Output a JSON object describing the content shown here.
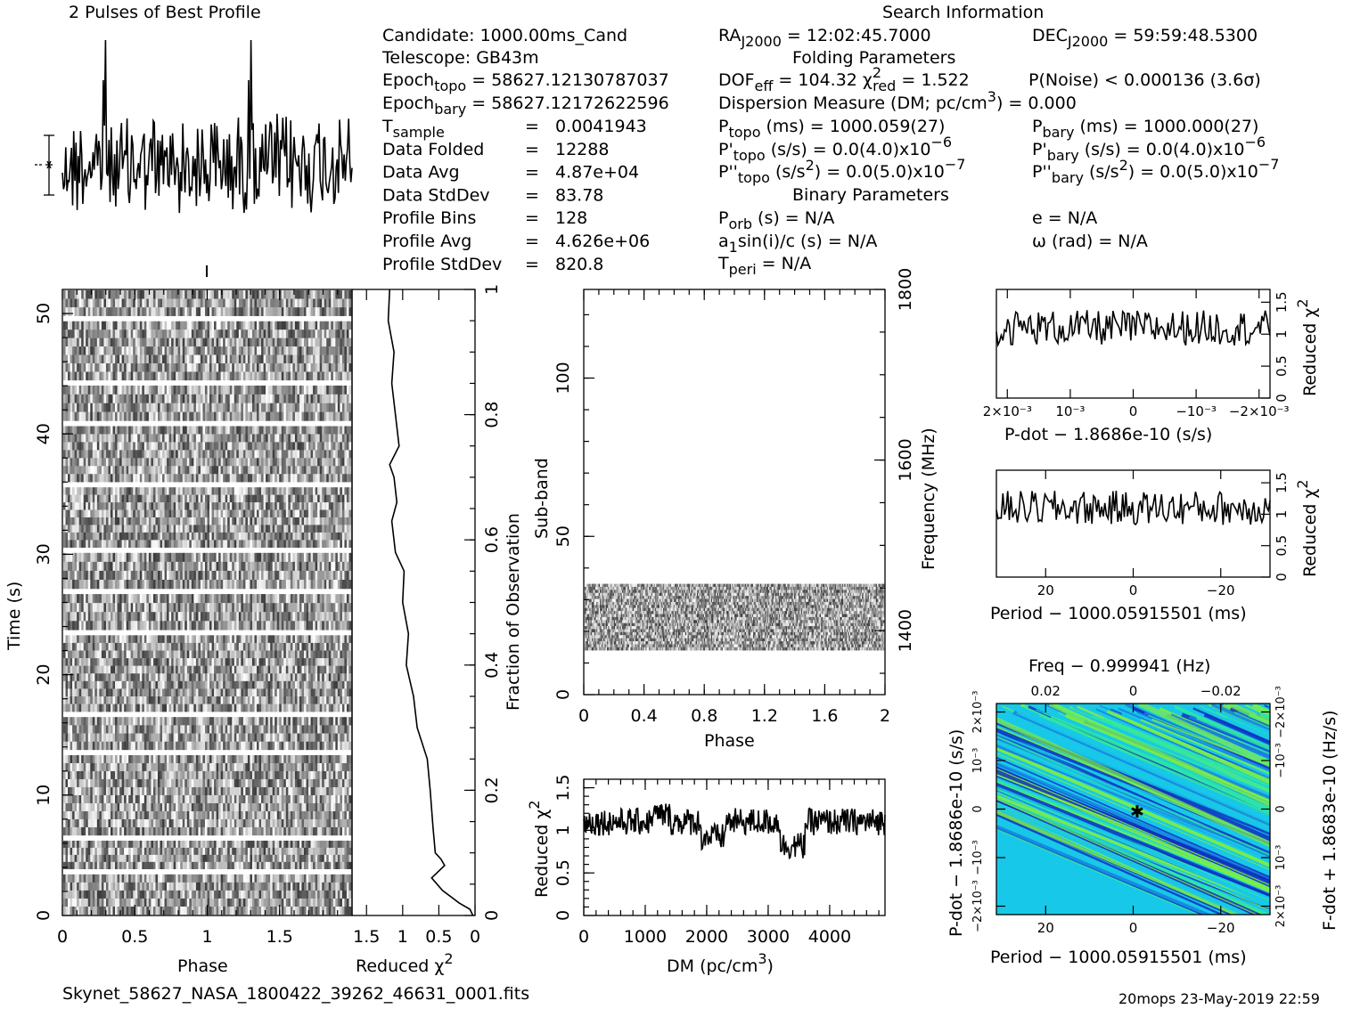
{
  "title_profile": "2 Pulses of Best Profile",
  "search_title": "Search Information",
  "folding_title": "Folding Parameters",
  "binary_title": "Binary Parameters",
  "candidate": {
    "line1": "Candidate:  1000.00ms_Cand",
    "line2": "Telescope:  GB43m",
    "epoch_topo": "Epoch",
    "epoch_topo_sub": "topo",
    "epoch_topo_val": " = 58627.12130787037",
    "epoch_bary": "Epoch",
    "epoch_bary_sub": "bary",
    "epoch_bary_val": " = 58627.12172622596",
    "rows": [
      {
        "label": "T",
        "sub": "sample",
        "eq": "=",
        "value": "0.0041943"
      },
      {
        "label": "Data Folded",
        "sub": "",
        "eq": "=",
        "value": "12288"
      },
      {
        "label": "Data Avg",
        "sub": "",
        "eq": "=",
        "value": "4.87e+04"
      },
      {
        "label": "Data StdDev",
        "sub": "",
        "eq": "=",
        "value": "83.78"
      },
      {
        "label": "Profile Bins",
        "sub": "",
        "eq": "=",
        "value": "128"
      },
      {
        "label": "Profile Avg",
        "sub": "",
        "eq": "=",
        "value": "4.626e+06"
      },
      {
        "label": "Profile StdDev",
        "sub": "",
        "eq": "=",
        "value": "820.8"
      }
    ]
  },
  "search": {
    "ra": "RA",
    "ra_sub": "J2000",
    "ra_val": " = 12:02:45.7000",
    "dec": "DEC",
    "dec_sub": "J2000",
    "dec_val": " = 59:59:48.5300",
    "dof": "DOF",
    "dof_sub": "eff",
    "dof_val": " = 104.32  ",
    "chi": "χ",
    "chi_sup": "2",
    "chi_sub": "red",
    "chi_val": " = 1.522",
    "pnoise": "P(Noise) < 0.000136  (3.6σ)",
    "dm_line": "Dispersion Measure (DM; pc/cm",
    "dm_sup": "3",
    "dm_end": ") = 0.000",
    "ptopo": "P",
    "ptopo_sub": "topo",
    "ptopo_val": " (ms) =  1000.059(27)",
    "pbary": "P",
    "pbary_sub": "bary",
    "pbary_val": " (ms) =  1000.000(27)",
    "pdtopo": "P'",
    "pdtopo_sub": "topo",
    "pdtopo_val": " (s/s) = 0.0(4.0)x10",
    "pdtopo_exp": "−6",
    "pdbary": "P'",
    "pdbary_sub": "bary",
    "pdbary_val": " (s/s) = 0.0(4.0)x10",
    "pdbary_exp": "−6",
    "pddtopo": "P''",
    "pddtopo_sub": "topo",
    "pddtopo_val": " (s/s",
    "pddtopo_sup": "2",
    "pddtopo_val2": ") = 0.0(5.0)x10",
    "pddtopo_exp": "−7",
    "pddbary": "P''",
    "pddbary_sub": "bary",
    "pddbary_val": " (s/s",
    "pddbary_sup": "2",
    "pddbary_val2": ") = 0.0(5.0)x10",
    "pddbary_exp": "−7",
    "porb": "P",
    "porb_sub": "orb",
    "porb_val": " (s) = N/A",
    "ecc": "e = N/A",
    "asini": "a",
    "asini_sub": "1",
    "asini_val": "sin(i)/c (s) = N/A",
    "omega": "ω (rad) = N/A",
    "tperi": "T",
    "tperi_sub": "peri",
    "tperi_val": " = N/A"
  },
  "axes": {
    "time_label": "Time (s)",
    "phase_label": "Phase",
    "redchi_label": "Reduced χ",
    "chi_sup": "2",
    "fraction_label": "Fraction of Observation",
    "subband_label": "Sub-band",
    "frequency_label": "Frequency (MHz)",
    "dm_label": "DM (pc/cm",
    "dm_sup": "3",
    "dm_close": ")",
    "pdot_label": "P-dot − 1.8686e-10 (s/s)",
    "period_label": "Period − 1000.05915501 (ms)",
    "freq_label": "Freq − 0.999941 (Hz)",
    "fdot_label": "F-dot + 1.8683e-10 (Hz/s)"
  },
  "footer": {
    "filename": "Skynet_58627_NASA_1800422_39262_46631_0001.fits",
    "stamp": "20mops 23-May-2019 22:59"
  },
  "chart_data": [
    {
      "type": "line",
      "name": "profile",
      "title": "2 Pulses of Best Profile",
      "x": [
        0,
        2
      ],
      "note_values": "phase 0-2"
    },
    {
      "type": "heatmap",
      "name": "time-vs-phase",
      "xlabel": "Phase",
      "ylabel": "Time (s)",
      "xlim": [
        0,
        2
      ],
      "ylim": [
        0,
        52
      ],
      "xticks": [
        "0",
        "0.5",
        "1",
        "1.5"
      ],
      "yticks": [
        "0",
        "10",
        "20",
        "30",
        "40",
        "50"
      ]
    },
    {
      "type": "line",
      "name": "time-reduced-chi2",
      "xlabel": "Reduced χ2",
      "xticks": [
        "1.5",
        "1",
        "0.5",
        "0"
      ],
      "yticks_right": [
        "0",
        "0.2",
        "0.4",
        "0.6",
        "0.8",
        "1"
      ],
      "ylabel_right": "Fraction of Observation",
      "points": [
        [
          0.03,
          0.0
        ],
        [
          0.07,
          0.01
        ],
        [
          0.22,
          0.02
        ],
        [
          0.45,
          0.04
        ],
        [
          0.6,
          0.06
        ],
        [
          0.42,
          0.08
        ],
        [
          0.47,
          0.09
        ],
        [
          0.55,
          0.1
        ],
        [
          0.58,
          0.14
        ],
        [
          0.62,
          0.2
        ],
        [
          0.66,
          0.25
        ],
        [
          0.8,
          0.3
        ],
        [
          0.85,
          0.35
        ],
        [
          0.95,
          0.4
        ],
        [
          0.92,
          0.45
        ],
        [
          1.0,
          0.5
        ],
        [
          0.98,
          0.55
        ],
        [
          1.1,
          0.58
        ],
        [
          1.15,
          0.63
        ],
        [
          1.08,
          0.66
        ],
        [
          1.12,
          0.7
        ],
        [
          1.18,
          0.72
        ],
        [
          1.05,
          0.75
        ],
        [
          1.1,
          0.8
        ],
        [
          1.15,
          0.85
        ],
        [
          1.12,
          0.9
        ],
        [
          1.2,
          0.95
        ],
        [
          1.18,
          1.0
        ]
      ]
    },
    {
      "type": "heatmap",
      "name": "subband-vs-phase",
      "xlabel": "Phase",
      "ylabel": "Sub-band",
      "ylabel_right": "Frequency (MHz)",
      "xlim": [
        0,
        2
      ],
      "ylim": [
        0,
        128
      ],
      "xticks": [
        "0",
        "0.4",
        "0.8",
        "1.2",
        "1.6",
        "2"
      ],
      "yticks": [
        "0",
        "50",
        "100"
      ],
      "yticks_right": [
        "1400",
        "1600",
        "1800"
      ],
      "data_band": [
        14,
        35
      ]
    },
    {
      "type": "line",
      "name": "dm-reduced-chi2",
      "xlabel": "DM (pc/cm3)",
      "ylabel": "Reduced χ2",
      "xlim": [
        0,
        4900
      ],
      "ylim": [
        0,
        1.6
      ],
      "xticks": [
        "0",
        "1000",
        "2000",
        "3000",
        "4000"
      ],
      "yticks": [
        "0",
        "0.5",
        "1",
        "1.5"
      ]
    },
    {
      "type": "line",
      "name": "pdot-reduced-chi2",
      "xlabel": "P-dot − 1.8686e-10 (s/s)",
      "ylabel": "Reduced χ2",
      "xticks": [
        "2×10⁻³",
        "10⁻³",
        "0",
        "−10⁻³",
        "−2×10⁻³"
      ],
      "yticks": [
        "0",
        "0.5",
        "1",
        "1.5"
      ]
    },
    {
      "type": "line",
      "name": "period-reduced-chi2",
      "xlabel": "Period − 1000.05915501 (ms)",
      "ylabel": "Reduced χ2",
      "xticks": [
        "20",
        "0",
        "−20"
      ],
      "yticks": [
        "0",
        "0.5",
        "1",
        "1.5"
      ]
    },
    {
      "type": "heatmap",
      "name": "period-pdot-plane",
      "xlabel": "Period − 1000.05915501 (ms)",
      "ylabel": "P-dot − 1.8686e-10 (s/s)",
      "xlabel_top": "Freq − 0.999941 (Hz)",
      "ylabel_right": "F-dot + 1.8683e-10 (Hz/s)",
      "xticks": [
        "20",
        "0",
        "−20"
      ],
      "xticks_top": [
        "−0.02",
        "0",
        "0.02"
      ],
      "yticks": [
        "2×10⁻³",
        "10⁻³",
        "0",
        "−10⁻³",
        "−2×10⁻³"
      ],
      "colors": [
        "#1030c0",
        "#1880e0",
        "#18c8e8",
        "#30e8a0",
        "#80f040"
      ]
    }
  ]
}
